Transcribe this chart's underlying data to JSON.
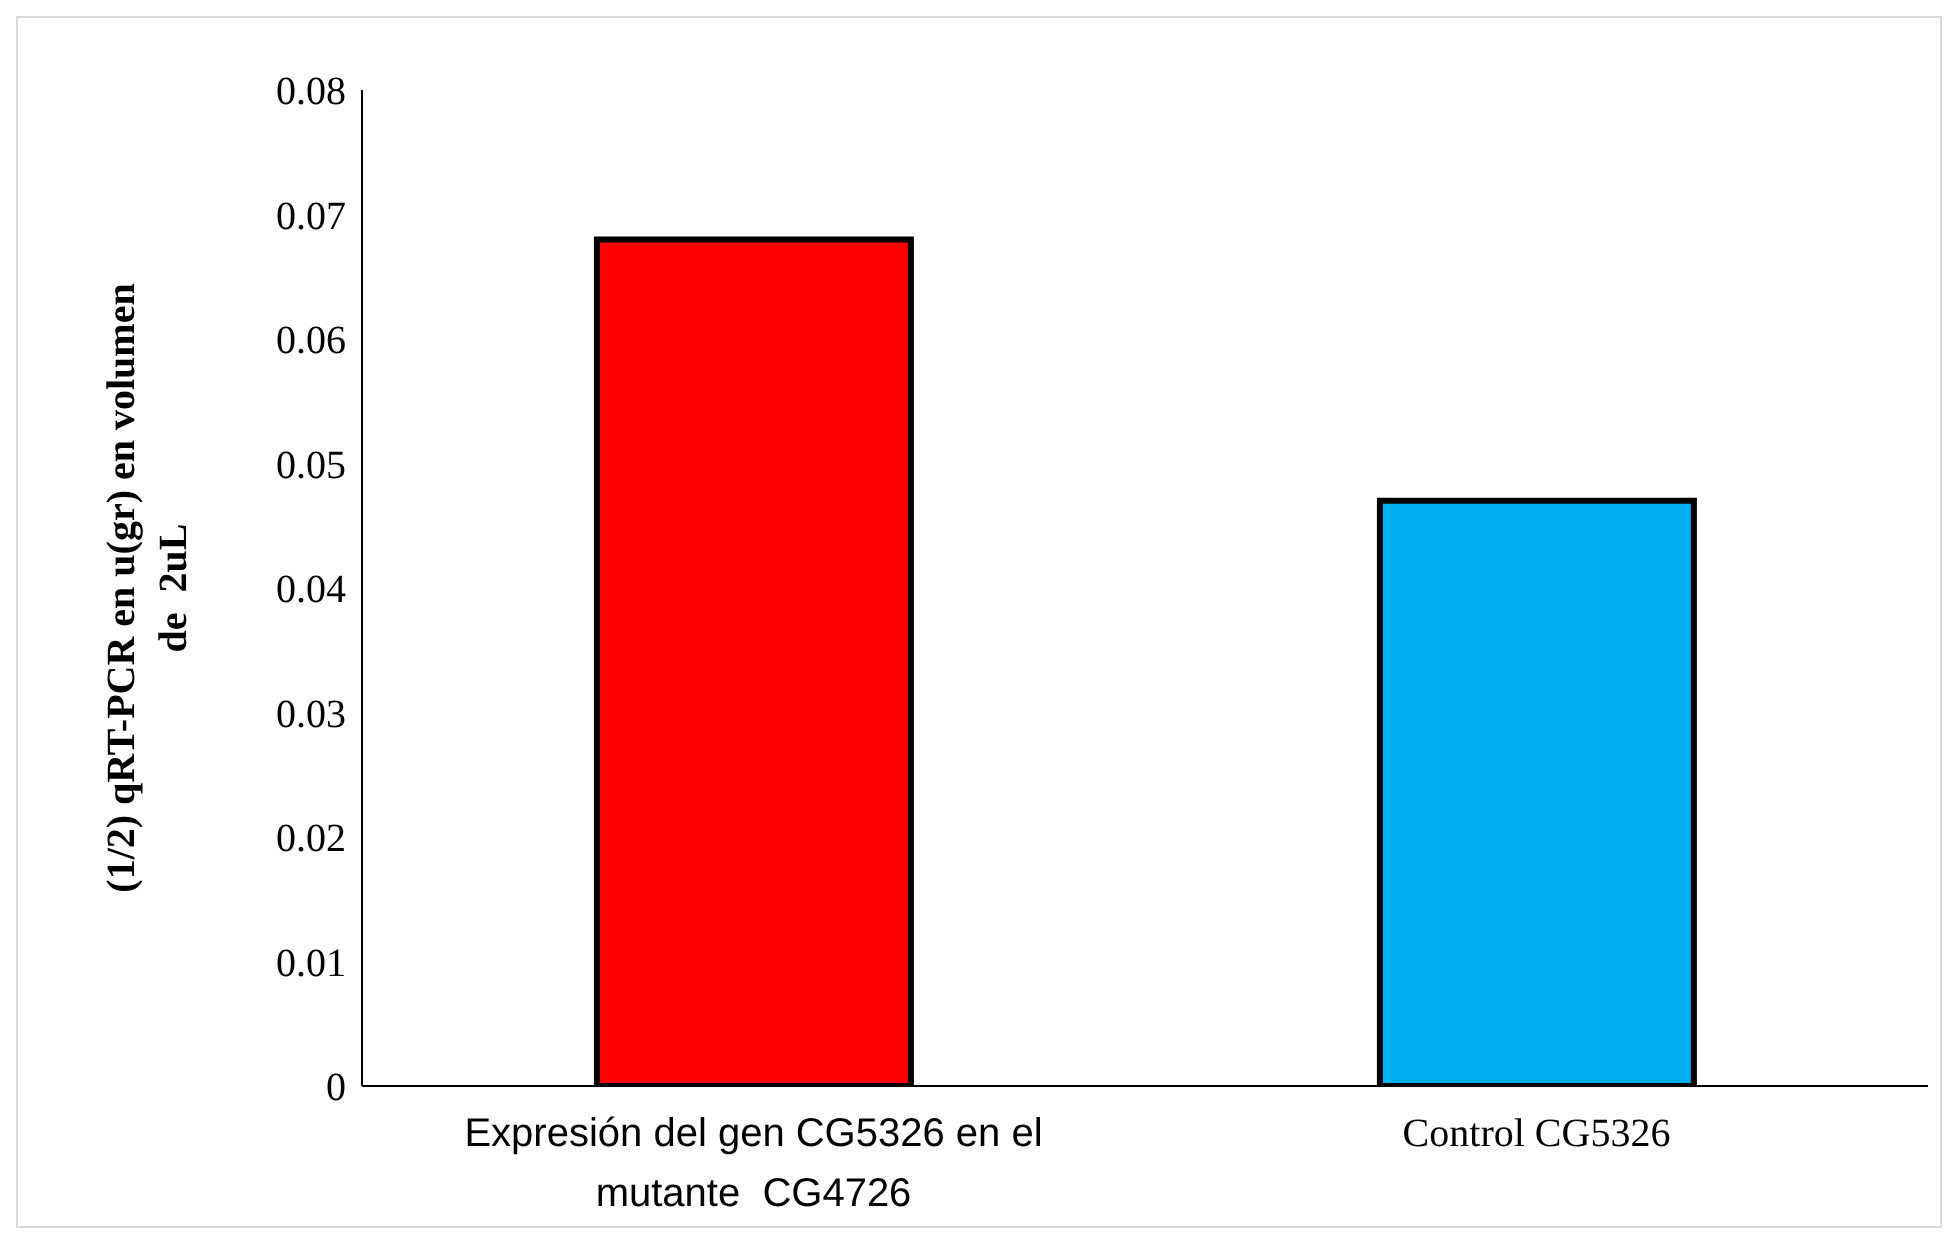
{
  "chart_data": {
    "type": "bar",
    "ylabel": "(1/2) qRT-PCR en u(gr) en volumen de  2uL",
    "categories": [
      "Expresión del gen CG5326 en el mutante  CG4726",
      "Control CG5326"
    ],
    "values": [
      0.068,
      0.047
    ],
    "colors": [
      "#ff0000",
      "#00b0f0"
    ],
    "ylim": [
      0,
      0.08
    ],
    "yticks": [
      0,
      0.01,
      0.02,
      0.03,
      0.04,
      0.05,
      0.06,
      0.07,
      0.08
    ],
    "grid": false,
    "legend": false
  }
}
